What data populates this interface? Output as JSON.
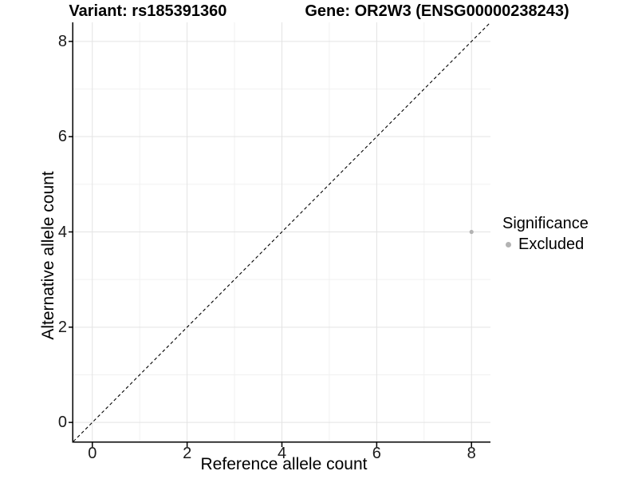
{
  "chart_data": {
    "type": "scatter",
    "title_left": "Variant: rs185391360",
    "title_right": "Gene: OR2W3 (ENSG00000238243)",
    "xlabel": "Reference allele count",
    "ylabel": "Alternative allele count",
    "xlim": [
      -0.4,
      8.4
    ],
    "ylim": [
      -0.4,
      8.4
    ],
    "x_ticks": [
      0,
      2,
      4,
      6,
      8
    ],
    "y_ticks": [
      0,
      2,
      4,
      6,
      8
    ],
    "minor_ticks": [
      1,
      3,
      5,
      7
    ],
    "grid": true,
    "identity_line": {
      "style": "dashed",
      "slope": 1,
      "intercept": 0,
      "color": "#000000"
    },
    "points": [
      {
        "x": 8,
        "y": 4,
        "series": "Excluded"
      }
    ],
    "legend": {
      "title": "Significance",
      "position": "right",
      "items": [
        {
          "label": "Excluded",
          "color": "#b3b3b3"
        }
      ]
    },
    "colors": {
      "point_excluded": "#b3b3b3",
      "grid_major": "#e3e3e3",
      "grid_minor": "#f1f1f1",
      "axis_line": "#000000",
      "tick_text": "#1a1a1a"
    }
  }
}
